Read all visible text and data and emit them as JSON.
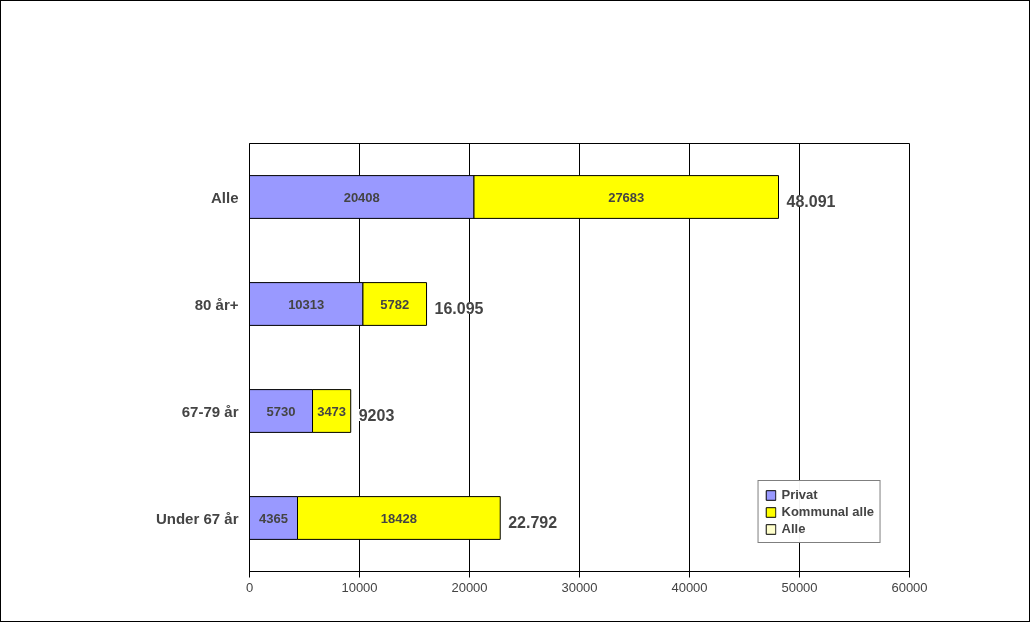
{
  "chart_data": {
    "type": "bar",
    "orientation": "horizontal",
    "stacked": true,
    "categories": [
      "Alle",
      "80 år+",
      "67-79 år",
      "Under 67 år"
    ],
    "series": [
      {
        "name": "Privat",
        "color": "#9999ff",
        "values": [
          20408,
          10313,
          5730,
          4365
        ]
      },
      {
        "name": "Kommunal alle",
        "color": "#ffff00",
        "values": [
          27683,
          5782,
          3473,
          18428
        ]
      },
      {
        "name": "Alle",
        "color": "#ffffcc",
        "values": [
          null,
          null,
          null,
          null
        ]
      }
    ],
    "totals": [
      "48.091",
      "16.095",
      "9203",
      "22.792"
    ],
    "data_labels": true,
    "xlim": [
      0,
      60000
    ],
    "xticks": [
      0,
      10000,
      20000,
      30000,
      40000,
      50000,
      60000
    ],
    "grid": "x",
    "legend": "bottom right"
  }
}
